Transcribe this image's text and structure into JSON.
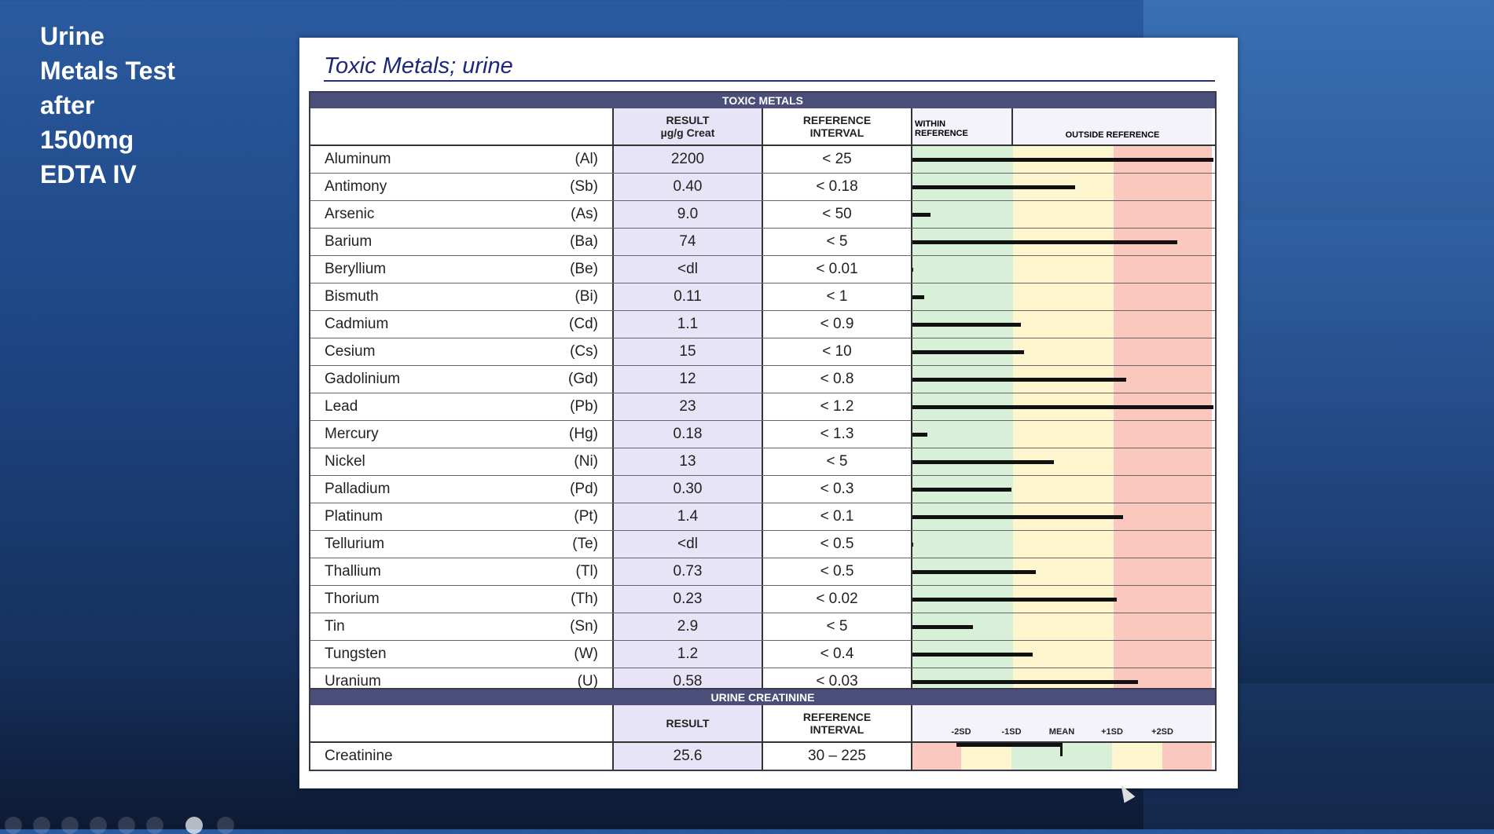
{
  "slide_title": [
    "Urine",
    "Metals Test",
    "after",
    "1500mg",
    "EDTA IV"
  ],
  "doc_title": "Toxic Metals; urine",
  "toxic": {
    "section_label": "TOXIC METALS",
    "headers": {
      "result": [
        "RESULT",
        "µg/g Creat"
      ],
      "reference": [
        "REFERENCE",
        "INTERVAL"
      ],
      "within": [
        "WITHIN",
        "REFERENCE"
      ],
      "outside": "OUTSIDE REFERENCE"
    },
    "rows": [
      {
        "name": "Aluminum",
        "symbol": "(Al)",
        "result": "2200",
        "reference": "< 25",
        "level": 1.0
      },
      {
        "name": "Antimony",
        "symbol": "(Sb)",
        "result": "0.40",
        "reference": "< 0.18",
        "level": 0.54
      },
      {
        "name": "Arsenic",
        "symbol": "(As)",
        "result": "9.0",
        "reference": "< 50",
        "level": 0.06
      },
      {
        "name": "Barium",
        "symbol": "(Ba)",
        "result": "74",
        "reference": "< 5",
        "level": 0.88
      },
      {
        "name": "Beryllium",
        "symbol": "(Be)",
        "result": "<dl",
        "reference": "< 0.01",
        "level": 0.0
      },
      {
        "name": "Bismuth",
        "symbol": "(Bi)",
        "result": "0.11",
        "reference": "< 1",
        "level": 0.04
      },
      {
        "name": "Cadmium",
        "symbol": "(Cd)",
        "result": "1.1",
        "reference": "< 0.9",
        "level": 0.36
      },
      {
        "name": "Cesium",
        "symbol": "(Cs)",
        "result": "15",
        "reference": "< 10",
        "level": 0.37
      },
      {
        "name": "Gadolinium",
        "symbol": "(Gd)",
        "result": "12",
        "reference": "< 0.8",
        "level": 0.71
      },
      {
        "name": "Lead",
        "symbol": "(Pb)",
        "result": "23",
        "reference": "< 1.2",
        "level": 1.0
      },
      {
        "name": "Mercury",
        "symbol": "(Hg)",
        "result": "0.18",
        "reference": "< 1.3",
        "level": 0.05
      },
      {
        "name": "Nickel",
        "symbol": "(Ni)",
        "result": "13",
        "reference": "< 5",
        "level": 0.47
      },
      {
        "name": "Palladium",
        "symbol": "(Pd)",
        "result": "0.30",
        "reference": "< 0.3",
        "level": 0.33
      },
      {
        "name": "Platinum",
        "symbol": "(Pt)",
        "result": "1.4",
        "reference": "< 0.1",
        "level": 0.7
      },
      {
        "name": "Tellurium",
        "symbol": "(Te)",
        "result": "<dl",
        "reference": "< 0.5",
        "level": 0.0
      },
      {
        "name": "Thallium",
        "symbol": "(Tl)",
        "result": "0.73",
        "reference": "< 0.5",
        "level": 0.41
      },
      {
        "name": "Thorium",
        "symbol": "(Th)",
        "result": "0.23",
        "reference": "< 0.02",
        "level": 0.68
      },
      {
        "name": "Tin",
        "symbol": "(Sn)",
        "result": "2.9",
        "reference": "< 5",
        "level": 0.2
      },
      {
        "name": "Tungsten",
        "symbol": "(W)",
        "result": "1.2",
        "reference": "< 0.4",
        "level": 0.4
      },
      {
        "name": "Uranium",
        "symbol": "(U)",
        "result": "0.58",
        "reference": "< 0.03",
        "level": 0.75
      }
    ]
  },
  "creatinine": {
    "section_label": "URINE CREATININE",
    "headers": {
      "result": "RESULT",
      "reference": [
        "REFERENCE",
        "INTERVAL"
      ],
      "sd_labels": [
        "-2SD",
        "-1SD",
        "MEAN",
        "+1SD",
        "+2SD"
      ]
    },
    "row": {
      "name": "Creatinine",
      "result": "25.6",
      "reference": "30 – 225"
    }
  }
}
